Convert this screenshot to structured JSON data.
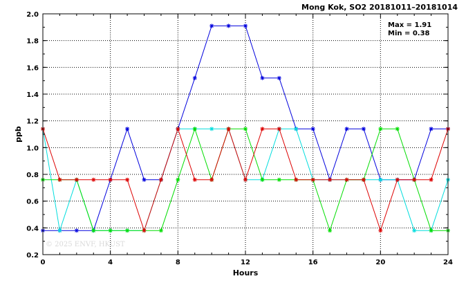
{
  "chart_data": {
    "type": "line",
    "title": "Mong Kok, SO2 20181011–20181014",
    "xlabel": "Hours",
    "ylabel": "ppb",
    "xlim": [
      0,
      24
    ],
    "ylim": [
      0.2,
      2.0
    ],
    "xticks": [
      0,
      4,
      8,
      12,
      16,
      20,
      24
    ],
    "yticks": [
      0.2,
      0.4,
      0.6,
      0.8,
      1.0,
      1.2,
      1.4,
      1.6,
      1.8,
      2.0
    ],
    "grid": true,
    "annotations": {
      "max": "Max = 1.91",
      "min": "Min = 0.38"
    },
    "watermark": "© 2025  ENVF, HKUST",
    "x": [
      0,
      1,
      2,
      3,
      4,
      5,
      6,
      7,
      8,
      9,
      10,
      11,
      12,
      13,
      14,
      15,
      16,
      17,
      18,
      19,
      20,
      21,
      22,
      23,
      24
    ],
    "series": [
      {
        "color": "#0000dd",
        "marker": "asterisk",
        "values": [
          0.38,
          0.38,
          0.38,
          0.38,
          0.76,
          1.14,
          0.76,
          0.76,
          1.14,
          1.52,
          1.91,
          1.91,
          1.91,
          1.52,
          1.52,
          1.14,
          1.14,
          0.76,
          1.14,
          1.14,
          0.76,
          0.76,
          0.76,
          1.14,
          1.14
        ]
      },
      {
        "color": "#00dddd",
        "marker": "asterisk",
        "values": [
          1.14,
          0.38,
          0.76,
          0.38,
          0.38,
          0.38,
          0.38,
          0.76,
          1.14,
          1.14,
          1.14,
          1.14,
          0.76,
          0.76,
          1.14,
          1.14,
          0.76,
          0.76,
          0.76,
          0.76,
          0.76,
          0.76,
          0.38,
          0.38,
          0.76
        ]
      },
      {
        "color": "#00dd00",
        "marker": "asterisk",
        "values": [
          0.76,
          0.76,
          0.76,
          0.38,
          0.38,
          0.38,
          0.38,
          0.38,
          0.76,
          1.14,
          0.76,
          1.14,
          1.14,
          0.76,
          0.76,
          0.76,
          0.76,
          0.38,
          0.76,
          0.76,
          1.14,
          1.14,
          0.76,
          0.38,
          0.38
        ]
      },
      {
        "color": "#dd0000",
        "marker": "asterisk",
        "values": [
          1.14,
          0.76,
          0.76,
          0.76,
          0.76,
          0.76,
          0.38,
          0.76,
          1.14,
          0.76,
          0.76,
          1.14,
          0.76,
          1.14,
          1.14,
          0.76,
          0.76,
          0.76,
          0.76,
          0.76,
          0.38,
          0.76,
          0.76,
          0.76,
          1.14
        ]
      }
    ]
  }
}
